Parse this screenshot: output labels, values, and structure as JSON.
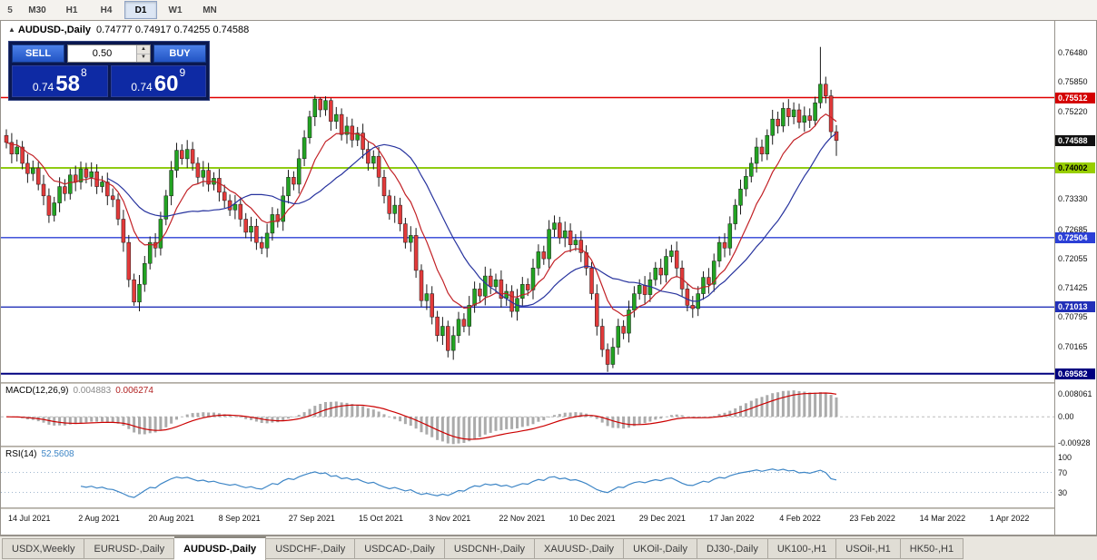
{
  "toolbar": {
    "timeframes": [
      "5",
      "M30",
      "H1",
      "H4",
      "D1",
      "W1",
      "MN"
    ],
    "active_index": 4
  },
  "chart_header": {
    "collapse_icon": "▲",
    "title": "AUDUSD-,Daily",
    "ohlc_text": "0.74777 0.74917 0.74255 0.74588"
  },
  "trade_panel": {
    "sell_label": "SELL",
    "buy_label": "BUY",
    "lot_size": "0.50",
    "sell_price": {
      "prefix": "0.74",
      "pips": "58",
      "pipette": "8"
    },
    "buy_price": {
      "prefix": "0.74",
      "pips": "60",
      "pipette": "9"
    }
  },
  "chart_data": {
    "type": "candlestick",
    "symbol": "AUDUSD",
    "timeframe": "Daily",
    "title": "AUDUSD-,Daily",
    "ohlc": {
      "open": "0.74777",
      "high": "0.74917",
      "low": "0.74255",
      "close": "0.74588"
    },
    "ylim": [
      0.694,
      0.7716
    ],
    "x_labels": [
      "14 Jul 2021",
      "2 Aug 2021",
      "20 Aug 2021",
      "8 Sep 2021",
      "27 Sep 2021",
      "15 Oct 2021",
      "3 Nov 2021",
      "22 Nov 2021",
      "10 Dec 2021",
      "29 Dec 2021",
      "17 Jan 2022",
      "4 Feb 2022",
      "23 Feb 2022",
      "14 Mar 2022",
      "1 Apr 2022"
    ],
    "price_axis_ticks": [
      "0.76480",
      "0.75850",
      "0.75220",
      "0.73330",
      "0.72685",
      "0.72055",
      "0.71425",
      "0.70795",
      "0.70165"
    ],
    "price_badges": [
      {
        "label": "0.75512",
        "price": 0.75512,
        "bg": "#D40000",
        "fg": "#FFFFFF"
      },
      {
        "label": "0.74588",
        "price": 0.74588,
        "bg": "#111111",
        "fg": "#FFFFFF"
      },
      {
        "label": "0.74002",
        "price": 0.74002,
        "bg": "#98CE00",
        "fg": "#10200"
      },
      {
        "label": "0.72504",
        "price": 0.72504,
        "bg": "#2B3FD6",
        "fg": "#FFFFFF"
      },
      {
        "label": "0.71013",
        "price": 0.71013,
        "bg": "#2230B8",
        "fg": "#FFFFFF"
      },
      {
        "label": "0.69582",
        "price": 0.69582,
        "bg": "#000080",
        "fg": "#FFFFFF"
      }
    ],
    "levels": [
      {
        "price": 0.75512,
        "color": "#E00000",
        "width": 1.4
      },
      {
        "price": 0.74002,
        "color": "#8FCB12",
        "width": 2
      },
      {
        "price": 0.72504,
        "color": "#2B3FD6",
        "width": 1.4
      },
      {
        "price": 0.71013,
        "color": "#2230B8",
        "width": 1.4
      },
      {
        "price": 0.69582,
        "color": "#000080",
        "width": 2
      }
    ],
    "up_color": "#22A322",
    "down_color": "#E23A3A",
    "wick_color": "#1A1A1A",
    "candles": [
      [
        0.747,
        0.7483,
        0.7442,
        0.7455
      ],
      [
        0.7455,
        0.7475,
        0.741,
        0.743
      ],
      [
        0.743,
        0.7461,
        0.7414,
        0.7445
      ],
      [
        0.7445,
        0.7458,
        0.7397,
        0.741
      ],
      [
        0.741,
        0.743,
        0.7368,
        0.7388
      ],
      [
        0.7388,
        0.7416,
        0.7372,
        0.74
      ],
      [
        0.74,
        0.7413,
        0.7352,
        0.7365
      ],
      [
        0.7365,
        0.7385,
        0.732,
        0.734
      ],
      [
        0.734,
        0.7356,
        0.7282,
        0.7298
      ],
      [
        0.7298,
        0.7338,
        0.7285,
        0.7325
      ],
      [
        0.7325,
        0.738,
        0.7305,
        0.736
      ],
      [
        0.736,
        0.7376,
        0.7329,
        0.7345
      ],
      [
        0.7345,
        0.7398,
        0.7332,
        0.7385
      ],
      [
        0.7385,
        0.7405,
        0.735,
        0.737
      ],
      [
        0.737,
        0.7414,
        0.7354,
        0.7398
      ],
      [
        0.7398,
        0.7411,
        0.7367,
        0.738
      ],
      [
        0.738,
        0.7412,
        0.736,
        0.7392
      ],
      [
        0.7392,
        0.7408,
        0.7344,
        0.736
      ],
      [
        0.736,
        0.7383,
        0.7347,
        0.737
      ],
      [
        0.737,
        0.739,
        0.732,
        0.734
      ],
      [
        0.734,
        0.7356,
        0.7316,
        0.7332
      ],
      [
        0.7332,
        0.7345,
        0.7277,
        0.729
      ],
      [
        0.729,
        0.731,
        0.722,
        0.724
      ],
      [
        0.724,
        0.7256,
        0.7144,
        0.716
      ],
      [
        0.716,
        0.7173,
        0.7104,
        0.7112
      ],
      [
        0.7112,
        0.717,
        0.7092,
        0.715
      ],
      [
        0.715,
        0.7211,
        0.7134,
        0.7195
      ],
      [
        0.7195,
        0.7253,
        0.7182,
        0.724
      ],
      [
        0.724,
        0.726,
        0.7208,
        0.7228
      ],
      [
        0.7228,
        0.7306,
        0.7212,
        0.729
      ],
      [
        0.729,
        0.7353,
        0.7277,
        0.734
      ],
      [
        0.734,
        0.7415,
        0.732,
        0.7395
      ],
      [
        0.7395,
        0.7454,
        0.7379,
        0.7438
      ],
      [
        0.7438,
        0.7451,
        0.7407,
        0.742
      ],
      [
        0.742,
        0.746,
        0.74,
        0.744
      ],
      [
        0.744,
        0.7456,
        0.7394,
        0.741
      ],
      [
        0.741,
        0.7423,
        0.7367,
        0.738
      ],
      [
        0.738,
        0.7415,
        0.736,
        0.7395
      ],
      [
        0.7395,
        0.7411,
        0.7349,
        0.7365
      ],
      [
        0.7365,
        0.7391,
        0.7352,
        0.7378
      ],
      [
        0.7378,
        0.7398,
        0.7328,
        0.7348
      ],
      [
        0.7348,
        0.7364,
        0.7314,
        0.733
      ],
      [
        0.733,
        0.7343,
        0.7297,
        0.731
      ],
      [
        0.731,
        0.7342,
        0.729,
        0.7322
      ],
      [
        0.7322,
        0.7338,
        0.7274,
        0.729
      ],
      [
        0.729,
        0.7303,
        0.7249,
        0.7262
      ],
      [
        0.7262,
        0.7295,
        0.7242,
        0.7275
      ],
      [
        0.7275,
        0.7291,
        0.7224,
        0.724
      ],
      [
        0.724,
        0.7253,
        0.7215,
        0.7228
      ],
      [
        0.7228,
        0.728,
        0.7208,
        0.726
      ],
      [
        0.726,
        0.7316,
        0.7244,
        0.73
      ],
      [
        0.73,
        0.7313,
        0.7272,
        0.7285
      ],
      [
        0.7285,
        0.736,
        0.7265,
        0.734
      ],
      [
        0.734,
        0.7396,
        0.7324,
        0.738
      ],
      [
        0.738,
        0.7393,
        0.7352,
        0.7365
      ],
      [
        0.7365,
        0.744,
        0.7345,
        0.742
      ],
      [
        0.742,
        0.7481,
        0.7404,
        0.7465
      ],
      [
        0.7465,
        0.7523,
        0.7452,
        0.751
      ],
      [
        0.751,
        0.7556,
        0.749,
        0.7548
      ],
      [
        0.7548,
        0.7552,
        0.7509,
        0.7525
      ],
      [
        0.7525,
        0.7554,
        0.7512,
        0.7545
      ],
      [
        0.7545,
        0.755,
        0.748,
        0.75
      ],
      [
        0.75,
        0.7531,
        0.7484,
        0.7515
      ],
      [
        0.7515,
        0.7528,
        0.7459,
        0.7472
      ],
      [
        0.7472,
        0.751,
        0.7452,
        0.749
      ],
      [
        0.749,
        0.7506,
        0.7444,
        0.746
      ],
      [
        0.746,
        0.7488,
        0.7447,
        0.7475
      ],
      [
        0.7475,
        0.7495,
        0.742,
        0.744
      ],
      [
        0.744,
        0.7456,
        0.7394,
        0.741
      ],
      [
        0.741,
        0.7438,
        0.7397,
        0.7425
      ],
      [
        0.7425,
        0.7445,
        0.736,
        0.738
      ],
      [
        0.738,
        0.7396,
        0.7324,
        0.734
      ],
      [
        0.734,
        0.7353,
        0.7289,
        0.7302
      ],
      [
        0.7302,
        0.734,
        0.7282,
        0.732
      ],
      [
        0.732,
        0.7336,
        0.7264,
        0.728
      ],
      [
        0.728,
        0.7293,
        0.7227,
        0.724
      ],
      [
        0.724,
        0.7275,
        0.722,
        0.7255
      ],
      [
        0.7255,
        0.7271,
        0.7164,
        0.718
      ],
      [
        0.718,
        0.7193,
        0.7102,
        0.7115
      ],
      [
        0.7115,
        0.715,
        0.7095,
        0.713
      ],
      [
        0.713,
        0.7146,
        0.7064,
        0.708
      ],
      [
        0.708,
        0.7093,
        0.7027,
        0.704
      ],
      [
        0.704,
        0.708,
        0.702,
        0.706
      ],
      [
        0.706,
        0.7072,
        0.6993,
        0.7008
      ],
      [
        0.7008,
        0.706,
        0.6988,
        0.704
      ],
      [
        0.704,
        0.7091,
        0.7024,
        0.7075
      ],
      [
        0.7075,
        0.7088,
        0.7047,
        0.706
      ],
      [
        0.706,
        0.7125,
        0.704,
        0.7105
      ],
      [
        0.7105,
        0.7156,
        0.7089,
        0.714
      ],
      [
        0.714,
        0.7153,
        0.7112,
        0.7125
      ],
      [
        0.7125,
        0.7188,
        0.7105,
        0.7168
      ],
      [
        0.7168,
        0.7184,
        0.7129,
        0.7145
      ],
      [
        0.7145,
        0.7173,
        0.7132,
        0.716
      ],
      [
        0.716,
        0.718,
        0.71,
        0.712
      ],
      [
        0.712,
        0.7151,
        0.7104,
        0.7135
      ],
      [
        0.7135,
        0.7148,
        0.7079,
        0.7092
      ],
      [
        0.7092,
        0.714,
        0.7072,
        0.712
      ],
      [
        0.712,
        0.7166,
        0.7104,
        0.715
      ],
      [
        0.715,
        0.7163,
        0.7125,
        0.7138
      ],
      [
        0.7138,
        0.7205,
        0.7118,
        0.7185
      ],
      [
        0.7185,
        0.7236,
        0.7169,
        0.722
      ],
      [
        0.722,
        0.7233,
        0.7192,
        0.7205
      ],
      [
        0.7205,
        0.7288,
        0.7185,
        0.7268
      ],
      [
        0.7268,
        0.7298,
        0.7252,
        0.7282
      ],
      [
        0.7282,
        0.7295,
        0.7237,
        0.725
      ],
      [
        0.725,
        0.7285,
        0.723,
        0.7265
      ],
      [
        0.7265,
        0.7281,
        0.7219,
        0.7235
      ],
      [
        0.7235,
        0.7258,
        0.7222,
        0.7245
      ],
      [
        0.7245,
        0.7265,
        0.7198,
        0.7218
      ],
      [
        0.7218,
        0.7234,
        0.7169,
        0.7185
      ],
      [
        0.7185,
        0.7198,
        0.7117,
        0.713
      ],
      [
        0.713,
        0.715,
        0.704,
        0.706
      ],
      [
        0.706,
        0.7076,
        0.6994,
        0.701
      ],
      [
        0.701,
        0.7023,
        0.6962,
        0.6978
      ],
      [
        0.6978,
        0.7035,
        0.697,
        0.7015
      ],
      [
        0.7015,
        0.7076,
        0.6999,
        0.706
      ],
      [
        0.706,
        0.7073,
        0.7032,
        0.7045
      ],
      [
        0.7045,
        0.7115,
        0.7025,
        0.7095
      ],
      [
        0.7095,
        0.7146,
        0.7079,
        0.713
      ],
      [
        0.713,
        0.7161,
        0.7117,
        0.7148
      ],
      [
        0.7148,
        0.7168,
        0.7108,
        0.7128
      ],
      [
        0.7128,
        0.7176,
        0.7112,
        0.716
      ],
      [
        0.716,
        0.7198,
        0.7147,
        0.7185
      ],
      [
        0.7185,
        0.7205,
        0.715,
        0.717
      ],
      [
        0.717,
        0.7226,
        0.7154,
        0.721
      ],
      [
        0.721,
        0.7235,
        0.7197,
        0.7222
      ],
      [
        0.7222,
        0.7242,
        0.7165,
        0.7185
      ],
      [
        0.7185,
        0.7201,
        0.7124,
        0.714
      ],
      [
        0.714,
        0.7153,
        0.7092,
        0.7105
      ],
      [
        0.7105,
        0.7125,
        0.7078,
        0.7098
      ],
      [
        0.7098,
        0.7146,
        0.7082,
        0.713
      ],
      [
        0.713,
        0.7178,
        0.7117,
        0.7165
      ],
      [
        0.7165,
        0.7185,
        0.713,
        0.715
      ],
      [
        0.715,
        0.7216,
        0.7134,
        0.72
      ],
      [
        0.72,
        0.7253,
        0.7187,
        0.724
      ],
      [
        0.724,
        0.726,
        0.7208,
        0.7228
      ],
      [
        0.7228,
        0.7296,
        0.7212,
        0.728
      ],
      [
        0.728,
        0.7333,
        0.7267,
        0.732
      ],
      [
        0.732,
        0.7375,
        0.73,
        0.7355
      ],
      [
        0.7355,
        0.7398,
        0.7339,
        0.7382
      ],
      [
        0.7382,
        0.7423,
        0.7369,
        0.741
      ],
      [
        0.741,
        0.7465,
        0.739,
        0.7445
      ],
      [
        0.7445,
        0.7461,
        0.7414,
        0.743
      ],
      [
        0.743,
        0.7483,
        0.7417,
        0.747
      ],
      [
        0.747,
        0.7525,
        0.745,
        0.7505
      ],
      [
        0.7505,
        0.7521,
        0.7474,
        0.749
      ],
      [
        0.749,
        0.7541,
        0.7477,
        0.7528
      ],
      [
        0.7528,
        0.7548,
        0.749,
        0.751
      ],
      [
        0.751,
        0.7541,
        0.7494,
        0.7525
      ],
      [
        0.7525,
        0.7538,
        0.7485,
        0.7498
      ],
      [
        0.7498,
        0.7532,
        0.7478,
        0.7512
      ],
      [
        0.7512,
        0.7528,
        0.7486,
        0.7502
      ],
      [
        0.7502,
        0.7553,
        0.7489,
        0.754
      ],
      [
        0.754,
        0.766,
        0.7528,
        0.758
      ],
      [
        0.758,
        0.7596,
        0.7539,
        0.7555
      ],
      [
        0.7555,
        0.7568,
        0.7465,
        0.7478
      ],
      [
        0.7478,
        0.7492,
        0.7426,
        0.7459
      ]
    ],
    "indicators": {
      "ma_fast": {
        "type": "ema",
        "period": 10,
        "color": "#C22126"
      },
      "ma_slow": {
        "type": "sma",
        "period": 20,
        "color": "#27339E"
      },
      "macd": {
        "name": "MACD(12,26,9)",
        "value_main": "0.004883",
        "value_signal": "0.006274",
        "fast": 12,
        "slow": 26,
        "signal": 9,
        "ylim": [
          -0.0103,
          0.0117
        ],
        "histogram_color": "#ABABAB",
        "signal_color": "#CC0000",
        "axis_labels": [
          {
            "text": "0.008061",
            "value": 0.008061
          },
          {
            "text": "0.00",
            "value": 0
          },
          {
            "text": "-0.00928",
            "value": -0.00928
          }
        ]
      },
      "rsi": {
        "name": "RSI(14)",
        "value_text": "52.5608",
        "period": 14,
        "color": "#3E86C6",
        "view": [
          0,
          120
        ],
        "level_labels": [
          {
            "text": "100",
            "value": 100,
            "dotted": false
          },
          {
            "text": "70",
            "value": 70,
            "dotted": true
          },
          {
            "text": "30",
            "value": 30,
            "dotted": true
          }
        ]
      }
    }
  },
  "tabs": {
    "items": [
      {
        "label": "USDX,Weekly",
        "active": false
      },
      {
        "label": "EURUSD-,Daily",
        "active": false
      },
      {
        "label": "AUDUSD-,Daily",
        "active": true
      },
      {
        "label": "USDCHF-,Daily",
        "active": false
      },
      {
        "label": "USDCAD-,Daily",
        "active": false
      },
      {
        "label": "USDCNH-,Daily",
        "active": false
      },
      {
        "label": "XAUUSD-,Daily",
        "active": false
      },
      {
        "label": "UKOil-,Daily",
        "active": false
      },
      {
        "label": "DJ30-,Daily",
        "active": false
      },
      {
        "label": "UK100-,H1",
        "active": false
      },
      {
        "label": "USOil-,H1",
        "active": false
      },
      {
        "label": "HK50-,H1",
        "active": false
      }
    ]
  }
}
